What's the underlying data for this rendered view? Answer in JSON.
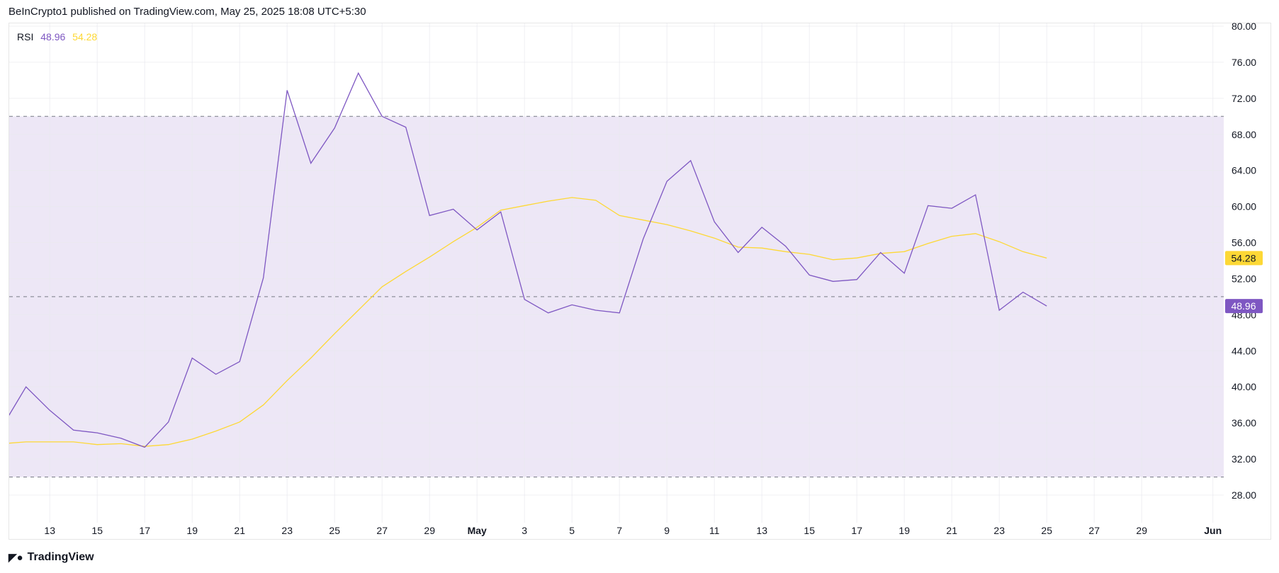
{
  "header": {
    "text": "BeInCrypto1 published on TradingView.com, May 25, 2025 18:08 UTC+5:30"
  },
  "legend": {
    "name": "RSI",
    "rsi_value": "48.96",
    "ma_value": "54.28"
  },
  "footer": {
    "brand": "TradingView"
  },
  "colors": {
    "rsi": "#7e57c2",
    "ma": "#fdd835",
    "band": "#ede7f6",
    "grid": "#f0f0f3"
  },
  "chart_data": {
    "type": "line",
    "ylim": [
      26,
      80
    ],
    "y_ticks": [
      "80.00",
      "76.00",
      "72.00",
      "68.00",
      "64.00",
      "60.00",
      "56.00",
      "52.00",
      "48.00",
      "44.00",
      "40.00",
      "36.00",
      "32.00",
      "28.00"
    ],
    "x_ticks": [
      {
        "label": "13",
        "day": 2
      },
      {
        "label": "15",
        "day": 4
      },
      {
        "label": "17",
        "day": 6
      },
      {
        "label": "19",
        "day": 8
      },
      {
        "label": "21",
        "day": 10
      },
      {
        "label": "23",
        "day": 12
      },
      {
        "label": "25",
        "day": 14
      },
      {
        "label": "27",
        "day": 16
      },
      {
        "label": "29",
        "day": 18
      },
      {
        "label": "May",
        "day": 20
      },
      {
        "label": "3",
        "day": 22
      },
      {
        "label": "5",
        "day": 24
      },
      {
        "label": "7",
        "day": 26
      },
      {
        "label": "9",
        "day": 28
      },
      {
        "label": "11",
        "day": 30
      },
      {
        "label": "13",
        "day": 32
      },
      {
        "label": "15",
        "day": 34
      },
      {
        "label": "17",
        "day": 36
      },
      {
        "label": "19",
        "day": 38
      },
      {
        "label": "21",
        "day": 40
      },
      {
        "label": "23",
        "day": 42
      },
      {
        "label": "25",
        "day": 44
      },
      {
        "label": "27",
        "day": 46
      },
      {
        "label": "29",
        "day": 48
      },
      {
        "label": "Jun",
        "day": 51
      }
    ],
    "x_start": "2025-04-11",
    "levels": {
      "upper": 70,
      "middle": 50,
      "lower": 30
    },
    "series": [
      {
        "name": "RSI",
        "values": [
          35.6,
          40.0,
          37.4,
          35.2,
          34.9,
          34.3,
          33.3,
          36.1,
          43.2,
          41.4,
          42.8,
          52.1,
          72.9,
          64.8,
          68.7,
          74.8,
          70.0,
          68.8,
          59.0,
          59.7,
          57.4,
          59.4,
          49.7,
          48.2,
          49.1,
          48.5,
          48.2,
          56.4,
          62.8,
          65.1,
          58.3,
          54.9,
          57.7,
          55.6,
          52.4,
          51.7,
          51.9,
          54.9,
          52.6,
          60.1,
          59.8,
          61.3,
          48.5,
          50.5,
          48.96
        ]
      },
      {
        "values": [
          33.7,
          33.9,
          33.9,
          33.9,
          33.6,
          33.7,
          33.4,
          33.6,
          34.2,
          35.1,
          36.1,
          38.0,
          40.7,
          43.2,
          45.9,
          48.5,
          51.1,
          52.8,
          54.4,
          56.1,
          57.7,
          59.6,
          60.1,
          60.6,
          61.0,
          60.7,
          59.0,
          58.5,
          58.0,
          57.3,
          56.5,
          55.5,
          55.4,
          55.0,
          54.7,
          54.1,
          54.3,
          54.8,
          55.0,
          55.9,
          56.7,
          57.0,
          56.1,
          55.0,
          54.28
        ]
      }
    ],
    "last_labels": {
      "rsi": "48.96",
      "ma": "54.28"
    }
  }
}
